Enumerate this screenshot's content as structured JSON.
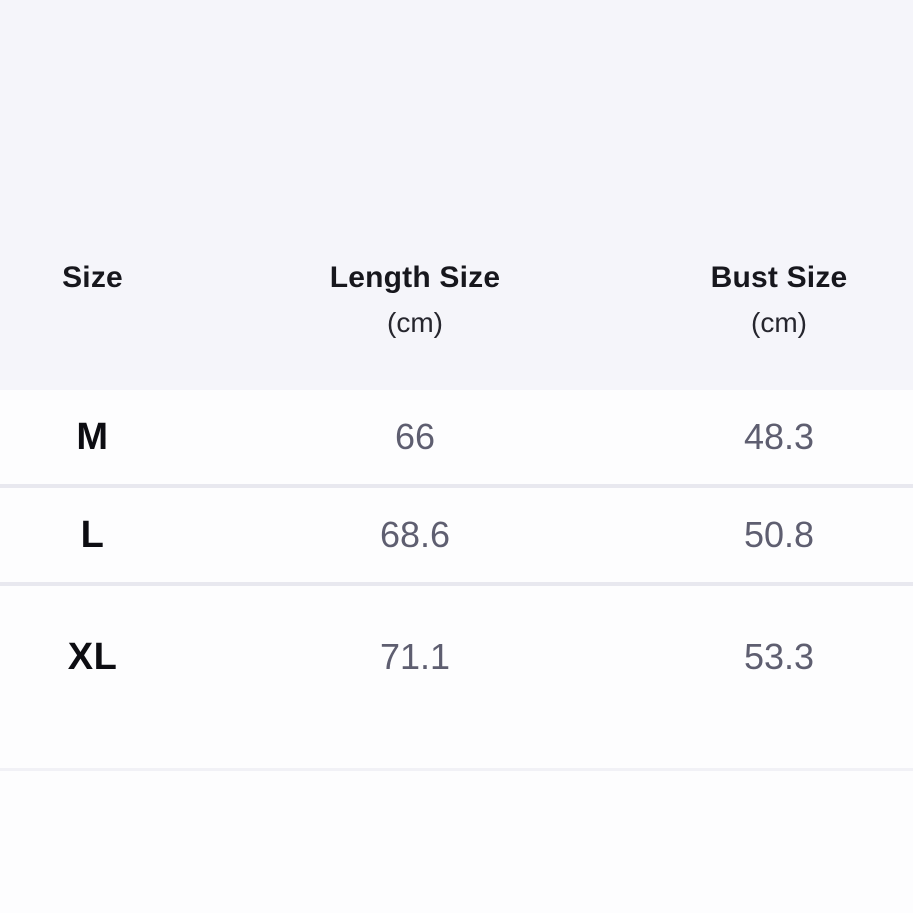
{
  "size_chart": {
    "columns": [
      {
        "label": "Size",
        "unit": ""
      },
      {
        "label": "Length Size",
        "unit": "(cm)"
      },
      {
        "label": "Bust Size",
        "unit": "(cm)"
      }
    ],
    "rows": [
      {
        "size": "M",
        "length": "66",
        "bust": "48.3"
      },
      {
        "size": "L",
        "length": "68.6",
        "bust": "50.8"
      },
      {
        "size": "XL",
        "length": "71.1",
        "bust": "53.3"
      }
    ]
  },
  "colors": {
    "header_background": "#f5f5fa",
    "row_background": "#fdfdfe",
    "header_text": "#17171d",
    "size_label_text": "#0d0d12",
    "value_text": "#5e5e70",
    "divider": "#e8e8ef",
    "bottom_divider": "#f1f1f6"
  }
}
